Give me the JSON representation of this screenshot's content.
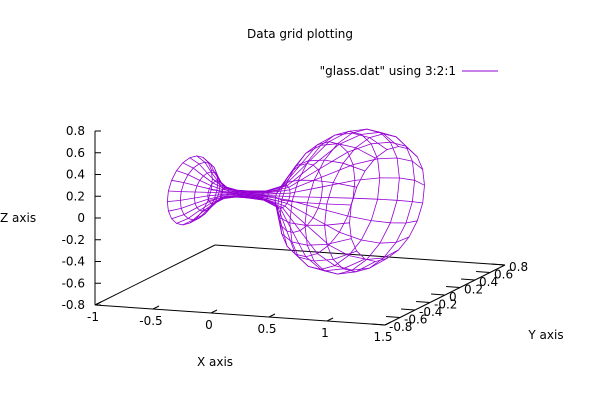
{
  "chart_data": {
    "type": "surface3d-wireframe",
    "title": "Data grid plotting",
    "xlabel": "X axis",
    "ylabel": "Y axis",
    "zlabel": "Z axis",
    "legend": {
      "entry": "\"glass.dat\" using 3:2:1",
      "color": "#9400d3",
      "placement": "top-right"
    },
    "x_ticks": [
      "-1",
      "-0.5",
      "0",
      "0.5",
      "1",
      "1.5"
    ],
    "y_ticks": [
      "-0.8",
      "-0.6",
      "-0.4",
      "-0.2",
      "0",
      "0.2",
      "0.4",
      "0.6",
      "0.8"
    ],
    "z_ticks": [
      "0.8",
      "0.6",
      "0.4",
      "0.2",
      "0",
      "-0.2",
      "-0.4",
      "-0.6",
      "-0.8"
    ],
    "xlim": [
      -1,
      1.5
    ],
    "ylim": [
      -0.8,
      0.8
    ],
    "zlim": [
      -0.8,
      0.8
    ],
    "surface": {
      "shape": "glass of revolution",
      "axis": "x",
      "profile_x": [
        -0.7,
        -0.62,
        -0.55,
        -0.48,
        -0.4,
        -0.3,
        -0.2,
        -0.05,
        0.1,
        0.25,
        0.4,
        0.55,
        0.7,
        0.85,
        1.0
      ],
      "profile_r": [
        0.3,
        0.25,
        0.17,
        0.1,
        0.05,
        0.03,
        0.03,
        0.04,
        0.1,
        0.3,
        0.5,
        0.6,
        0.63,
        0.6,
        0.5
      ],
      "segments": 20
    }
  }
}
